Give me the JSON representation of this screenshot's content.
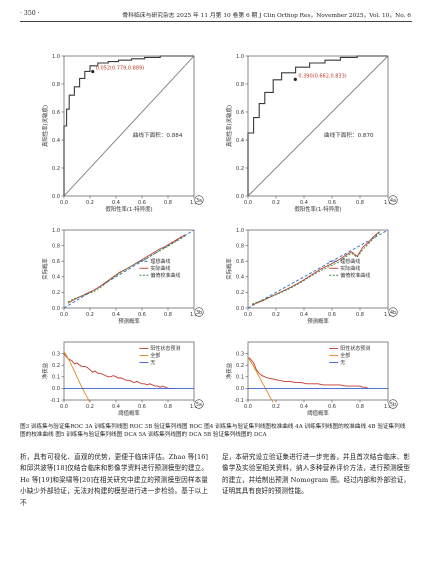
{
  "header": {
    "page_number": "· 350 ·",
    "journal": "骨科临床与研究杂志 2025 年 11 月第 10 卷第 6 期   J Clin Orthop Res，November 2025，Vol. 10，No. 6"
  },
  "panels": {
    "3a": {
      "label": "3a",
      "xlabel": "假阳性率(1-特异度)",
      "ylabel": "真阳性率(灵敏度)",
      "point_label": "0.052(0.779,0.889)",
      "auc_label": "曲线下面积：0.884"
    },
    "4a": {
      "label": "4a",
      "xlabel": "假阳性率(1-特异度)",
      "ylabel": "真阳性率(灵敏度)",
      "point_label": "0.390(0.662,0.833)",
      "auc_label": "曲线下面积：0.870"
    },
    "3b": {
      "label": "3b",
      "xlabel": "预测概率",
      "ylabel": "实际概率",
      "legend": [
        "理想曲线",
        "实际曲线",
        "偏倚校准曲线"
      ]
    },
    "4b": {
      "label": "4b",
      "xlabel": "预测概率",
      "ylabel": "实际概率",
      "legend": [
        "理想曲线",
        "实际曲线",
        "偏倚校准曲线"
      ]
    },
    "5a": {
      "label": "5a",
      "xlabel": "阈值概率",
      "ylabel": "净获益",
      "legend": [
        "阳性状态预测",
        "全部",
        "无"
      ]
    },
    "5b": {
      "label": "5b",
      "xlabel": "阈值概率",
      "ylabel": "净获益",
      "legend": [
        "阳性状态预测",
        "全部",
        "无"
      ]
    }
  },
  "chart_data": [
    {
      "type": "line",
      "panel": "3a",
      "xlim": [
        0,
        1
      ],
      "ylim": [
        0,
        1
      ],
      "x_ticks": [
        "0.0",
        "0.2",
        "0.4",
        "0.6",
        "0.8",
        "1.0"
      ],
      "y_ticks": [
        "0.0",
        "0.2",
        "0.4",
        "0.6",
        "0.8",
        "1.0"
      ],
      "series": [
        {
          "role": "roc",
          "x": [
            0,
            0,
            0.02,
            0.02,
            0.04,
            0.04,
            0.08,
            0.08,
            0.12,
            0.12,
            0.16,
            0.16,
            0.2,
            0.2,
            0.26,
            0.26,
            0.34,
            0.34,
            0.42,
            0.42,
            0.52,
            0.52,
            0.62,
            0.62,
            0.74,
            0.74,
            0.86,
            0.86,
            1
          ],
          "y": [
            0,
            0.5,
            0.5,
            0.62,
            0.62,
            0.72,
            0.72,
            0.78,
            0.78,
            0.84,
            0.84,
            0.89,
            0.89,
            0.93,
            0.93,
            0.95,
            0.95,
            0.96,
            0.96,
            0.97,
            0.97,
            0.98,
            0.98,
            0.99,
            0.99,
            1,
            1,
            1,
            1
          ]
        },
        {
          "role": "reference",
          "x": [
            0,
            1
          ],
          "y": [
            0,
            1
          ]
        }
      ],
      "point": [
        0.221,
        0.889
      ],
      "auc": 0.884
    },
    {
      "type": "line",
      "panel": "4a",
      "xlim": [
        0,
        1
      ],
      "ylim": [
        0,
        1
      ],
      "x_ticks": [
        "0.0",
        "0.2",
        "0.4",
        "0.6",
        "0.8",
        "1.0"
      ],
      "y_ticks": [
        "0.0",
        "0.2",
        "0.4",
        "0.6",
        "0.8",
        "1.0"
      ],
      "series": [
        {
          "role": "roc",
          "x": [
            0,
            0,
            0.04,
            0.04,
            0.08,
            0.08,
            0.12,
            0.12,
            0.18,
            0.18,
            0.24,
            0.24,
            0.34,
            0.34,
            0.44,
            0.44,
            0.55,
            0.55,
            0.66,
            0.66,
            0.78,
            0.78,
            1
          ],
          "y": [
            0,
            0.45,
            0.45,
            0.56,
            0.56,
            0.66,
            0.66,
            0.74,
            0.74,
            0.83,
            0.83,
            0.88,
            0.88,
            0.92,
            0.92,
            0.95,
            0.95,
            0.97,
            0.97,
            0.99,
            0.99,
            1,
            1
          ]
        },
        {
          "role": "reference",
          "x": [
            0,
            1
          ],
          "y": [
            0,
            1
          ]
        }
      ],
      "point": [
        0.338,
        0.833
      ],
      "auc": 0.87
    },
    {
      "type": "line",
      "panel": "3b",
      "xlim": [
        0,
        1
      ],
      "ylim": [
        0,
        1
      ],
      "x_ticks": [
        "0.0",
        "0.2",
        "0.4",
        "0.6",
        "0.8",
        "1.0"
      ],
      "y_ticks": [
        "0.0",
        "0.2",
        "0.4",
        "0.6",
        "0.8",
        "1.0"
      ],
      "series": [
        {
          "role": "ideal",
          "x": [
            0,
            1
          ],
          "y": [
            0,
            1
          ]
        },
        {
          "role": "apparent",
          "x": [
            0.03,
            0.08,
            0.13,
            0.18,
            0.23,
            0.28,
            0.33,
            0.38,
            0.43,
            0.48,
            0.53,
            0.58,
            0.63,
            0.68,
            0.73,
            0.78,
            0.83,
            0.88,
            0.93
          ],
          "y": [
            0.06,
            0.11,
            0.15,
            0.19,
            0.23,
            0.28,
            0.34,
            0.4,
            0.46,
            0.5,
            0.55,
            0.6,
            0.65,
            0.7,
            0.75,
            0.79,
            0.84,
            0.89,
            0.94
          ]
        },
        {
          "role": "bias_corrected",
          "x": [
            0.03,
            0.08,
            0.13,
            0.18,
            0.23,
            0.28,
            0.33,
            0.38,
            0.43,
            0.48,
            0.53,
            0.58,
            0.63,
            0.68,
            0.73,
            0.78,
            0.83,
            0.88,
            0.93
          ],
          "y": [
            0.08,
            0.12,
            0.15,
            0.18,
            0.21,
            0.26,
            0.33,
            0.39,
            0.45,
            0.5,
            0.55,
            0.59,
            0.63,
            0.68,
            0.73,
            0.77,
            0.82,
            0.87,
            0.92
          ]
        }
      ]
    },
    {
      "type": "line",
      "panel": "4b",
      "xlim": [
        0,
        1
      ],
      "ylim": [
        0,
        1
      ],
      "x_ticks": [
        "0.0",
        "0.2",
        "0.4",
        "0.6",
        "0.8",
        "1.0"
      ],
      "y_ticks": [
        "0.0",
        "0.2",
        "0.4",
        "0.6",
        "0.8",
        "1.0"
      ],
      "series": [
        {
          "role": "ideal",
          "x": [
            0,
            1
          ],
          "y": [
            0,
            1
          ]
        },
        {
          "role": "apparent",
          "x": [
            0.03,
            0.1,
            0.17,
            0.24,
            0.31,
            0.38,
            0.45,
            0.52,
            0.59,
            0.66,
            0.7,
            0.74,
            0.78,
            0.82,
            0.86,
            0.9,
            0.94
          ],
          "y": [
            0.04,
            0.09,
            0.15,
            0.21,
            0.27,
            0.34,
            0.42,
            0.5,
            0.56,
            0.63,
            0.68,
            0.72,
            0.66,
            0.78,
            0.84,
            0.92,
            0.98
          ]
        },
        {
          "role": "bias_corrected",
          "x": [
            0.03,
            0.1,
            0.17,
            0.24,
            0.31,
            0.38,
            0.45,
            0.52,
            0.59,
            0.66,
            0.7,
            0.74,
            0.78,
            0.82,
            0.86,
            0.9,
            0.94
          ],
          "y": [
            0.05,
            0.1,
            0.15,
            0.2,
            0.26,
            0.33,
            0.41,
            0.48,
            0.54,
            0.6,
            0.66,
            0.7,
            0.65,
            0.75,
            0.82,
            0.9,
            0.97
          ]
        }
      ]
    },
    {
      "type": "line",
      "panel": "5a",
      "xlim": [
        0,
        1
      ],
      "ylim": [
        -0.1,
        0.4
      ],
      "x_ticks": [
        "0.0",
        "0.2",
        "0.4",
        "0.6",
        "0.8",
        "1.0"
      ],
      "y_ticks": [
        "-0.1",
        "0.0",
        "0.1",
        "0.2",
        "0.3"
      ],
      "series": [
        {
          "role": "model",
          "x": [
            0,
            0.02,
            0.04,
            0.06,
            0.08,
            0.1,
            0.12,
            0.14,
            0.16,
            0.18,
            0.2,
            0.22,
            0.24,
            0.26,
            0.28,
            0.3,
            0.32,
            0.34,
            0.36,
            0.38,
            0.4,
            0.42,
            0.44,
            0.46,
            0.48,
            0.5,
            0.52,
            0.54,
            0.56,
            0.58,
            0.6,
            0.62,
            0.64,
            0.66,
            0.68,
            0.7,
            0.72,
            0.74,
            0.76,
            0.78,
            0.8,
            0.82,
            0.84,
            0.86
          ],
          "y": [
            0.3,
            0.27,
            0.25,
            0.24,
            0.21,
            0.22,
            0.2,
            0.19,
            0.19,
            0.18,
            0.16,
            0.14,
            0.15,
            0.13,
            0.13,
            0.12,
            0.11,
            0.1,
            0.1,
            0.11,
            0.1,
            0.09,
            0.09,
            0.08,
            0.07,
            0.07,
            0.06,
            0.05,
            0.06,
            0.05,
            0.04,
            0.04,
            0.03,
            0.04,
            0.03,
            0.02,
            0.02,
            0.01,
            0.02,
            0.01,
            0.0,
            0.0,
            0.0,
            0.0
          ]
        },
        {
          "role": "all",
          "x": [
            0,
            0.04,
            0.08,
            0.12,
            0.16,
            0.2
          ],
          "y": [
            0.32,
            0.24,
            0.15,
            0.05,
            -0.04,
            -0.12
          ]
        },
        {
          "role": "none",
          "x": [
            0,
            1
          ],
          "y": [
            0,
            0
          ]
        }
      ]
    },
    {
      "type": "line",
      "panel": "5b",
      "xlim": [
        0,
        1
      ],
      "ylim": [
        -0.1,
        0.4
      ],
      "x_ticks": [
        "0.0",
        "0.2",
        "0.4",
        "0.6",
        "0.8",
        "1.0"
      ],
      "y_ticks": [
        "-0.1",
        "0.0",
        "0.1",
        "0.2",
        "0.3"
      ],
      "series": [
        {
          "role": "model",
          "x": [
            0,
            0.02,
            0.04,
            0.06,
            0.08,
            0.1,
            0.14,
            0.18,
            0.22,
            0.26,
            0.3,
            0.34,
            0.38,
            0.42,
            0.46,
            0.5,
            0.54,
            0.58,
            0.62,
            0.66,
            0.7,
            0.74,
            0.78,
            0.8,
            0.82,
            0.84,
            0.86
          ],
          "y": [
            0.27,
            0.25,
            0.22,
            0.16,
            0.13,
            0.11,
            0.09,
            0.08,
            0.07,
            0.06,
            0.06,
            0.05,
            0.05,
            0.04,
            0.04,
            0.04,
            0.03,
            0.03,
            0.03,
            0.03,
            0.02,
            0.02,
            0.02,
            0.02,
            0.01,
            0.01,
            0.0
          ]
        },
        {
          "role": "all",
          "x": [
            0,
            0.04,
            0.08,
            0.12,
            0.16,
            0.18
          ],
          "y": [
            0.27,
            0.19,
            0.1,
            0.01,
            -0.08,
            -0.12
          ]
        },
        {
          "role": "none",
          "x": [
            0,
            1
          ],
          "y": [
            0,
            0
          ]
        }
      ]
    }
  ],
  "caption": {
    "left": "图3  训练集与验证集ROC   3A 训练集列线图 ROC   3B 验证集列线图 ROC   图4  训练集与验证集列线图校准曲线   4A 训练集列线图的校准曲线   4B 验证集列线图的校准曲线   图5  训练集与验证集列线图 DCA   5A 训练集列线图的 DCA   5B 验证集列线图的 DCA"
  },
  "body": {
    "left_column": "析，具有可视化、直观的优势，更便于临床评估。Zhao 等[16]和邱洪波等[18]仅结合临床和影像学资料进行预测模型的建立。He 等[19]和梁啸等[20]在相关研究中建立的预测模型因样本量小缺少外部验证，无法对构建的模型进行进一步检验。基于以上不",
    "right_column": "足，本研究设立验证集进行进一步完善，并且首次结合临床、影像学及实验室相关资料，纳入多种营养评价方法，进行预测模型的建立，并绘制出预测 Nomogram 图。经过内部和外部验证，证明其具有良好的预测性能。"
  },
  "colors": {
    "roc_line": "#3a3a3a",
    "reference": "#7a7a7a",
    "ideal": "#2f6bbf",
    "apparent": "#c0392b",
    "bias_corrected": "#3a8a3a",
    "model_dca": "#c0392b",
    "all_dca": "#e08a1e",
    "none_dca": "#3a5fcd",
    "plot_bg": "#ffffff"
  }
}
